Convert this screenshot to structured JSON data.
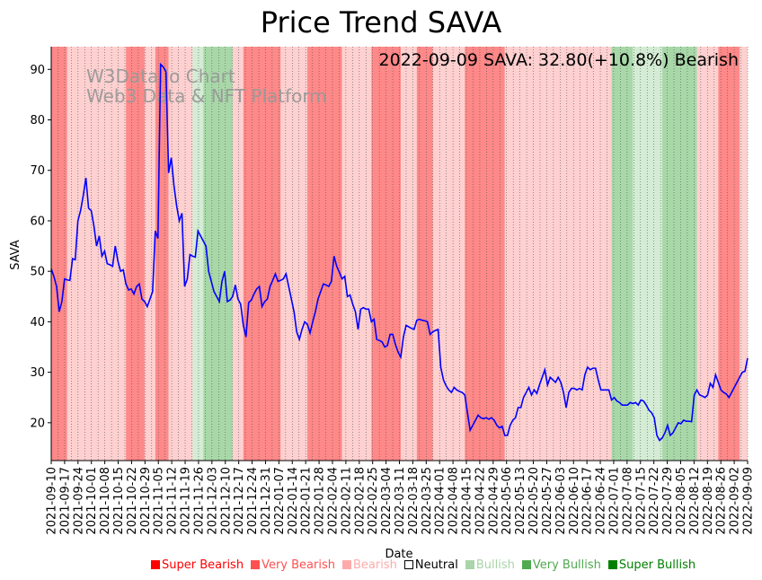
{
  "chart_data": {
    "type": "line",
    "title": "Price Trend SAVA",
    "xlabel": "Date",
    "ylabel": "SAVA",
    "ylim": [
      12.5,
      94.5
    ],
    "yticks": [
      20,
      30,
      40,
      50,
      60,
      70,
      80,
      90
    ],
    "annotation": "2022-09-09 SAVA: 32.80(+10.8%) Bearish",
    "watermark": [
      "W3Data.io Chart",
      "Web3 Data & NFT Platform"
    ],
    "x_ticks": [
      "2021-09-10",
      "2021-09-17",
      "2021-09-24",
      "2021-10-01",
      "2021-10-08",
      "2021-10-15",
      "2021-10-22",
      "2021-10-29",
      "2021-11-05",
      "2021-11-12",
      "2021-11-19",
      "2021-11-26",
      "2021-12-03",
      "2021-12-10",
      "2021-12-17",
      "2021-12-24",
      "2021-12-31",
      "2022-01-07",
      "2022-01-14",
      "2022-01-21",
      "2022-01-28",
      "2022-02-04",
      "2022-02-11",
      "2022-02-18",
      "2022-02-25",
      "2022-03-04",
      "2022-03-11",
      "2022-03-18",
      "2022-03-25",
      "2022-04-01",
      "2022-04-08",
      "2022-04-15",
      "2022-04-22",
      "2022-04-29",
      "2022-05-06",
      "2022-05-13",
      "2022-05-20",
      "2022-05-27",
      "2022-06-03",
      "2022-06-10",
      "2022-06-17",
      "2022-06-24",
      "2022-07-01",
      "2022-07-08",
      "2022-07-15",
      "2022-07-22",
      "2022-07-29",
      "2022-08-05",
      "2022-08-12",
      "2022-08-19",
      "2022-08-26",
      "2022-09-02",
      "2022-09-09"
    ],
    "series": [
      {
        "name": "SAVA",
        "color": "#0000ff",
        "points": [
          [
            0,
            50.5
          ],
          [
            1,
            49
          ],
          [
            2,
            47
          ],
          [
            3,
            42
          ],
          [
            4,
            44
          ],
          [
            5,
            48.5
          ],
          [
            6,
            48.3
          ],
          [
            7,
            48.2
          ],
          [
            8,
            52.5
          ],
          [
            9,
            52.3
          ],
          [
            10,
            60
          ],
          [
            11,
            62
          ],
          [
            12,
            65
          ],
          [
            13,
            68.5
          ],
          [
            14,
            62.5
          ],
          [
            15,
            62
          ],
          [
            16,
            59
          ],
          [
            17,
            55
          ],
          [
            18,
            57
          ],
          [
            19,
            53
          ],
          [
            20,
            54
          ],
          [
            21,
            51.5
          ],
          [
            22,
            51.3
          ],
          [
            23,
            51
          ],
          [
            24,
            55
          ],
          [
            25,
            52
          ],
          [
            26,
            50
          ],
          [
            27,
            50.3
          ],
          [
            28,
            47.5
          ],
          [
            29,
            46.3
          ],
          [
            30,
            46.5
          ],
          [
            31,
            45.5
          ],
          [
            32,
            47
          ],
          [
            33,
            47.5
          ],
          [
            34,
            44.5
          ],
          [
            35,
            44
          ],
          [
            36,
            43
          ],
          [
            37,
            44.5
          ],
          [
            38,
            46
          ],
          [
            39,
            58
          ],
          [
            40,
            56.5
          ],
          [
            41,
            91
          ],
          [
            42,
            90.5
          ],
          [
            43,
            89.5
          ],
          [
            44,
            69.5
          ],
          [
            45,
            72.5
          ],
          [
            46,
            67
          ],
          [
            47,
            63
          ],
          [
            48,
            60
          ],
          [
            49,
            61.5
          ],
          [
            50,
            47
          ],
          [
            51,
            48.5
          ],
          [
            52,
            53.3
          ],
          [
            53,
            53
          ],
          [
            54,
            52.8
          ],
          [
            55,
            58
          ],
          [
            56,
            57
          ],
          [
            57,
            56
          ],
          [
            58,
            55
          ],
          [
            59,
            50
          ],
          [
            60,
            48
          ],
          [
            61,
            46
          ],
          [
            62,
            45
          ],
          [
            63,
            44
          ],
          [
            64,
            48
          ],
          [
            65,
            50
          ],
          [
            66,
            44
          ],
          [
            67,
            44.3
          ],
          [
            68,
            45
          ],
          [
            69,
            47.3
          ],
          [
            70,
            44.5
          ],
          [
            71,
            43.5
          ],
          [
            72,
            39.3
          ],
          [
            73,
            37
          ],
          [
            74,
            43.8
          ],
          [
            75,
            44.3
          ],
          [
            76,
            45.5
          ],
          [
            77,
            46.5
          ],
          [
            78,
            47
          ],
          [
            79,
            43
          ],
          [
            80,
            44
          ],
          [
            81,
            44.5
          ],
          [
            82,
            47
          ],
          [
            83,
            48.2
          ],
          [
            84,
            49.5
          ],
          [
            85,
            48
          ],
          [
            86,
            48.2
          ],
          [
            87,
            48.5
          ],
          [
            88,
            49.5
          ],
          [
            89,
            47
          ],
          [
            90,
            44.5
          ],
          [
            91,
            42
          ],
          [
            92,
            38
          ],
          [
            93,
            36.5
          ],
          [
            94,
            38.5
          ],
          [
            95,
            40
          ],
          [
            96,
            39.5
          ],
          [
            97,
            37.8
          ],
          [
            98,
            40
          ],
          [
            99,
            42
          ],
          [
            100,
            44.5
          ],
          [
            101,
            46
          ],
          [
            102,
            47.5
          ],
          [
            103,
            47.3
          ],
          [
            104,
            47
          ],
          [
            105,
            48
          ],
          [
            106,
            53
          ],
          [
            107,
            51
          ],
          [
            108,
            49.8
          ],
          [
            109,
            48.5
          ],
          [
            110,
            49
          ],
          [
            111,
            45
          ],
          [
            112,
            45.3
          ],
          [
            113,
            43.5
          ],
          [
            114,
            42
          ],
          [
            115,
            38.5
          ],
          [
            116,
            42.5
          ],
          [
            117,
            42.8
          ],
          [
            118,
            42.5
          ],
          [
            119,
            42.5
          ],
          [
            120,
            40
          ],
          [
            121,
            40.5
          ],
          [
            122,
            36.5
          ],
          [
            123,
            36.3
          ],
          [
            124,
            36
          ],
          [
            125,
            35
          ],
          [
            126,
            35.3
          ],
          [
            127,
            37.5
          ],
          [
            128,
            37.5
          ],
          [
            129,
            35.5
          ],
          [
            130,
            34
          ],
          [
            131,
            33
          ],
          [
            132,
            37
          ],
          [
            133,
            39.3
          ],
          [
            134,
            39
          ],
          [
            135,
            38.7
          ],
          [
            136,
            38.5
          ],
          [
            137,
            40.3
          ],
          [
            138,
            40.5
          ],
          [
            139,
            40.3
          ],
          [
            140,
            40.2
          ],
          [
            141,
            40
          ],
          [
            142,
            37.5
          ],
          [
            143,
            38
          ],
          [
            144,
            38.3
          ],
          [
            145,
            38.5
          ],
          [
            146,
            31
          ],
          [
            147,
            28.5
          ],
          [
            148,
            27.3
          ],
          [
            149,
            26.5
          ],
          [
            150,
            26
          ],
          [
            151,
            27
          ],
          [
            152,
            26.5
          ],
          [
            153,
            26.2
          ],
          [
            154,
            26
          ],
          [
            155,
            25.5
          ],
          [
            156,
            22
          ],
          [
            157,
            18.5
          ],
          [
            158,
            19.5
          ],
          [
            159,
            20.5
          ],
          [
            160,
            21.5
          ],
          [
            161,
            21
          ],
          [
            162,
            20.8
          ],
          [
            163,
            21
          ],
          [
            164,
            20.7
          ],
          [
            165,
            21
          ],
          [
            166,
            20.5
          ],
          [
            167,
            19.5
          ],
          [
            168,
            19
          ],
          [
            169,
            19.3
          ],
          [
            170,
            17.5
          ],
          [
            171,
            17.5
          ],
          [
            172,
            19.5
          ],
          [
            173,
            20.5
          ],
          [
            174,
            21
          ],
          [
            175,
            23
          ],
          [
            176,
            23
          ],
          [
            177,
            25
          ],
          [
            178,
            26
          ],
          [
            179,
            27
          ],
          [
            180,
            25.5
          ],
          [
            181,
            26.5
          ],
          [
            182,
            25.8
          ],
          [
            183,
            27.5
          ],
          [
            184,
            29
          ],
          [
            185,
            30.5
          ],
          [
            186,
            27.5
          ],
          [
            187,
            29
          ],
          [
            188,
            28.5
          ],
          [
            189,
            28
          ],
          [
            190,
            29
          ],
          [
            191,
            28
          ],
          [
            192,
            26
          ],
          [
            193,
            23
          ],
          [
            194,
            26
          ],
          [
            195,
            26.8
          ],
          [
            196,
            26.8
          ],
          [
            197,
            26.5
          ],
          [
            198,
            26.8
          ],
          [
            199,
            26.5
          ],
          [
            200,
            29.5
          ],
          [
            201,
            31
          ],
          [
            202,
            30.5
          ],
          [
            203,
            30.8
          ],
          [
            204,
            30.8
          ],
          [
            205,
            28.5
          ],
          [
            206,
            26.5
          ],
          [
            207,
            26.5
          ],
          [
            208,
            26.5
          ],
          [
            209,
            26.5
          ],
          [
            210,
            24.5
          ],
          [
            211,
            25
          ],
          [
            212,
            24.3
          ],
          [
            213,
            24
          ],
          [
            214,
            23.5
          ],
          [
            215,
            23.5
          ],
          [
            216,
            23.5
          ],
          [
            217,
            24
          ],
          [
            218,
            23.8
          ],
          [
            219,
            24
          ],
          [
            220,
            23.5
          ],
          [
            221,
            24.5
          ],
          [
            222,
            24.3
          ],
          [
            223,
            23.5
          ],
          [
            224,
            22.5
          ],
          [
            225,
            22
          ],
          [
            226,
            21
          ],
          [
            227,
            17.5
          ],
          [
            228,
            16.5
          ],
          [
            229,
            17
          ],
          [
            230,
            18
          ],
          [
            231,
            19.5
          ],
          [
            232,
            17.5
          ],
          [
            233,
            18
          ],
          [
            234,
            19
          ],
          [
            235,
            20
          ],
          [
            236,
            19.8
          ],
          [
            237,
            20.5
          ],
          [
            238,
            20.3
          ],
          [
            239,
            20.3
          ],
          [
            240,
            20.2
          ],
          [
            241,
            25.5
          ],
          [
            242,
            26.5
          ],
          [
            243,
            25.5
          ],
          [
            244,
            25.3
          ],
          [
            245,
            25
          ],
          [
            246,
            25.5
          ],
          [
            247,
            27.8
          ],
          [
            248,
            27
          ],
          [
            249,
            29.5
          ],
          [
            250,
            28
          ],
          [
            251,
            26.5
          ],
          [
            252,
            26
          ],
          [
            253,
            25.7
          ],
          [
            254,
            25
          ],
          [
            255,
            26
          ],
          [
            256,
            27
          ],
          [
            257,
            28
          ],
          [
            258,
            29
          ],
          [
            259,
            30
          ],
          [
            260,
            30.2
          ],
          [
            261,
            32.8
          ]
        ]
      }
    ],
    "sentiment_bands": [
      {
        "start": 0,
        "end": 6,
        "level": "very_bearish"
      },
      {
        "start": 6,
        "end": 28,
        "level": "bearish"
      },
      {
        "start": 28,
        "end": 35,
        "level": "very_bearish"
      },
      {
        "start": 35,
        "end": 39,
        "level": "bearish"
      },
      {
        "start": 39,
        "end": 44,
        "level": "very_bearish"
      },
      {
        "start": 44,
        "end": 53,
        "level": "bearish"
      },
      {
        "start": 53,
        "end": 57,
        "level": "bullish"
      },
      {
        "start": 57,
        "end": 68,
        "level": "very_bullish"
      },
      {
        "start": 68,
        "end": 72,
        "level": "bearish"
      },
      {
        "start": 72,
        "end": 86,
        "level": "very_bearish"
      },
      {
        "start": 86,
        "end": 96,
        "level": "bearish"
      },
      {
        "start": 96,
        "end": 109,
        "level": "very_bearish"
      },
      {
        "start": 109,
        "end": 120,
        "level": "bearish"
      },
      {
        "start": 120,
        "end": 131,
        "level": "very_bearish"
      },
      {
        "start": 131,
        "end": 137,
        "level": "bearish"
      },
      {
        "start": 137,
        "end": 143,
        "level": "very_bearish"
      },
      {
        "start": 143,
        "end": 155,
        "level": "bearish"
      },
      {
        "start": 155,
        "end": 170,
        "level": "very_bearish"
      },
      {
        "start": 170,
        "end": 178,
        "level": "bearish"
      },
      {
        "start": 178,
        "end": 210,
        "level": "bearish"
      },
      {
        "start": 210,
        "end": 218,
        "level": "very_bullish"
      },
      {
        "start": 218,
        "end": 229,
        "level": "bullish"
      },
      {
        "start": 229,
        "end": 242,
        "level": "very_bullish"
      },
      {
        "start": 242,
        "end": 250,
        "level": "bearish"
      },
      {
        "start": 250,
        "end": 258,
        "level": "very_bearish"
      },
      {
        "start": 258,
        "end": 262,
        "level": "bearish"
      }
    ],
    "legend": [
      {
        "label": "Super Bearish",
        "color": "#ff0000"
      },
      {
        "label": "Very Bearish",
        "color": "#ff5050"
      },
      {
        "label": "Bearish",
        "color": "#ffaaaa"
      },
      {
        "label": "Neutral",
        "color": "#000000"
      },
      {
        "label": "Bullish",
        "color": "#aad4aa"
      },
      {
        "label": "Very Bullish",
        "color": "#50aa50"
      },
      {
        "label": "Super Bullish",
        "color": "#008000"
      }
    ],
    "band_colors": {
      "bearish": "#ffd0d0",
      "very_bearish": "#ff8888",
      "bullish": "#d4ecd4",
      "very_bullish": "#a8d8a8"
    }
  }
}
